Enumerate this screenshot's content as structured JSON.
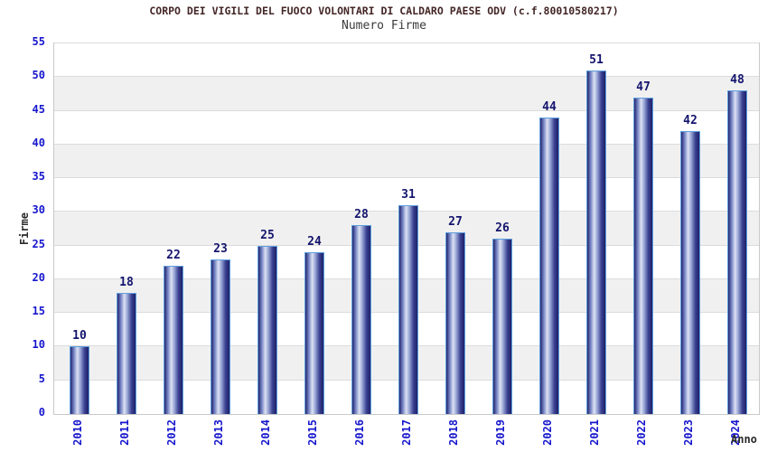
{
  "chart_data": {
    "type": "bar",
    "title": "CORPO DEI VIGILI DEL FUOCO VOLONTARI DI CALDARO PAESE ODV (c.f.80010580217)",
    "subtitle": "Numero Firme",
    "xlabel": "Anno",
    "ylabel": "Firme",
    "categories": [
      "2010",
      "2011",
      "2012",
      "2013",
      "2014",
      "2015",
      "2016",
      "2017",
      "2018",
      "2019",
      "2020",
      "2021",
      "2022",
      "2023",
      "2024"
    ],
    "values": [
      10,
      18,
      22,
      23,
      25,
      24,
      28,
      31,
      27,
      26,
      44,
      51,
      47,
      42,
      48
    ],
    "ylim": [
      0,
      55
    ],
    "ytick_step": 5,
    "grid_on": true,
    "legend_position": "none",
    "colors": {
      "title": "#442626",
      "subtitle": "#3a3a3a",
      "axis_title": "#2a2a2a",
      "tick_label": "#1616cd",
      "value_label": "#14146e",
      "bar_border": "#5ea0dd",
      "bar_gradient": [
        "#23266f 0%",
        "#7b8ac8 20%",
        "#dde2f3 38%",
        "#98a5d5 55%",
        "#3a4191 78%",
        "#1e2068 100%"
      ],
      "band": "#f0f0f0",
      "gridline": "#dcdcdc",
      "plot_border": "#c9c9c9",
      "background": "#ffffff"
    }
  }
}
